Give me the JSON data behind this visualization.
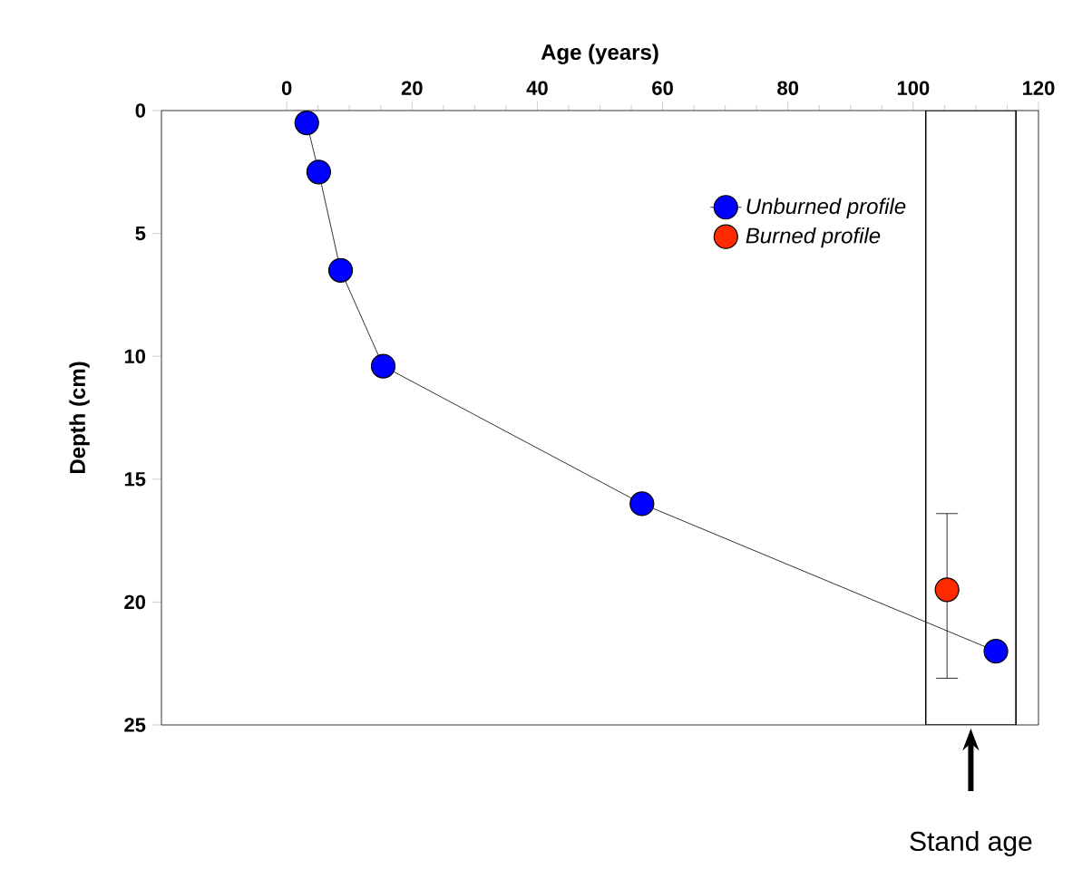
{
  "chart_data": {
    "type": "line",
    "xlabel": "Age (years)",
    "ylabel": "Depth (cm)",
    "xlim": [
      -20,
      120
    ],
    "xticks": [
      0,
      20,
      40,
      60,
      80,
      100,
      120
    ],
    "ylim": [
      25,
      0
    ],
    "yticks": [
      0,
      5,
      10,
      15,
      20,
      25
    ],
    "marker": "circle",
    "line_style": "solid",
    "legend": "top right",
    "grid": false,
    "series": [
      {
        "name": "*Unburned profile*",
        "color": "#0000ff",
        "x": [
          3.2,
          5.1,
          8.6,
          15.4,
          56.7,
          113.2
        ],
        "values": [
          0.5,
          2.5,
          6.5,
          10.4,
          16,
          22
        ]
      },
      {
        "name": "*Burned profile*",
        "color": "#ff2a00",
        "type": "scatter",
        "x": [
          105.4
        ],
        "values": [
          19.5
        ],
        "errors": [
          [
            16.4,
            23.1
          ]
        ]
      }
    ],
    "bands": [
      {
        "axis": "x",
        "from": 102,
        "to": 116.4,
        "color": "#ffffff"
      }
    ],
    "annotations": [
      "Stand age"
    ]
  }
}
